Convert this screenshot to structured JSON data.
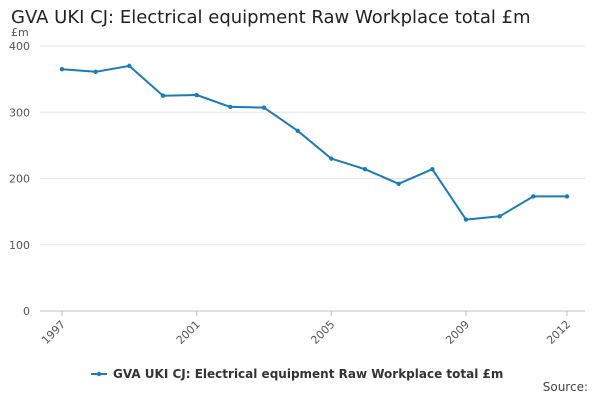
{
  "chart_data": {
    "type": "line",
    "title": "GVA UKI CJ: Electrical equipment Raw Workplace total £m",
    "ylabel": "£m",
    "xlabel": "",
    "x": [
      1997,
      1998,
      1999,
      2000,
      2001,
      2002,
      2003,
      2004,
      2005,
      2006,
      2007,
      2008,
      2009,
      2010,
      2011,
      2012
    ],
    "x_ticks": [
      "1997",
      "2001",
      "2005",
      "2009",
      "2012"
    ],
    "y_ticks": [
      0,
      100,
      200,
      300,
      400
    ],
    "ylim": [
      0,
      400
    ],
    "xlim": [
      1997,
      2012
    ],
    "grid": true,
    "legend_position": "bottom",
    "series": [
      {
        "name": "GVA UKI CJ: Electrical equipment Raw Workplace total £m",
        "color": "#1a7bb9",
        "values": [
          365,
          361,
          370,
          325,
          326,
          308,
          307,
          272,
          230,
          214,
          192,
          214,
          138,
          143,
          173,
          173
        ]
      }
    ]
  },
  "footer": {
    "source_label": "Source:"
  }
}
